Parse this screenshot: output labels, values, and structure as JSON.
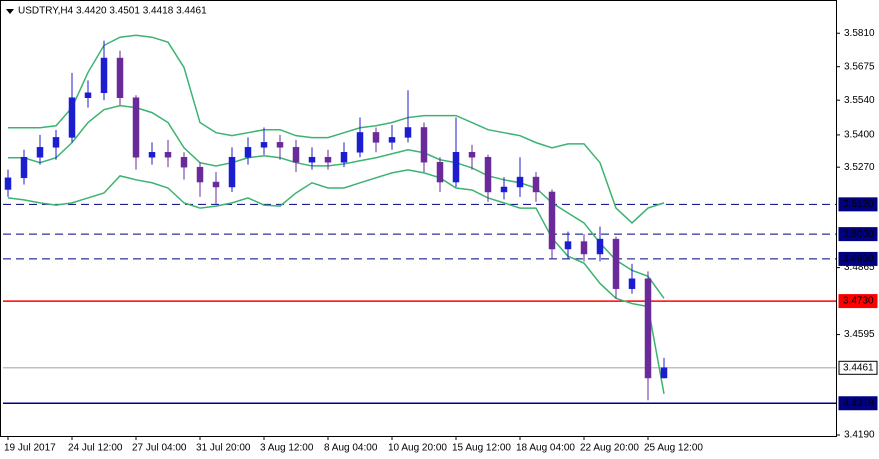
{
  "chart_data": {
    "type": "candlestick",
    "title": "USDTRY,H4  3.4420 3.4501 3.4418 3.4461",
    "categories": [
      "19 Jul 2017",
      null,
      null,
      null,
      "24 Jul 12:00",
      null,
      null,
      null,
      "27 Jul 04:00",
      null,
      null,
      null,
      "31 Jul 20:00",
      null,
      null,
      null,
      "3 Aug 12:00",
      null,
      null,
      null,
      "8 Aug 04:00",
      null,
      null,
      null,
      "10 Aug 20:00",
      null,
      null,
      null,
      "15 Aug 12:00",
      null,
      null,
      null,
      "18 Aug 04:00",
      null,
      null,
      null,
      "22 Aug 20:00",
      null,
      null,
      null,
      "25 Aug 12:00",
      null
    ],
    "open": [
      3.518,
      3.5227,
      3.531,
      3.535,
      3.539,
      3.555,
      3.557,
      3.571,
      3.555,
      3.531,
      3.533,
      3.531,
      3.527,
      3.521,
      3.519,
      3.531,
      3.535,
      3.537,
      3.535,
      3.529,
      3.531,
      3.529,
      3.533,
      3.541,
      3.537,
      3.539,
      3.543,
      3.529,
      3.521,
      3.533,
      3.531,
      3.517,
      3.519,
      3.523,
      3.517,
      3.494,
      3.497,
      3.492,
      3.498,
      3.478,
      3.482,
      3.442
    ],
    "high": [
      3.526,
      3.534,
      3.54,
      3.542,
      3.565,
      3.562,
      3.578,
      3.574,
      3.556,
      3.537,
      3.538,
      3.533,
      3.529,
      3.525,
      3.535,
      3.539,
      3.543,
      3.54,
      3.538,
      3.535,
      3.534,
      3.537,
      3.547,
      3.543,
      3.544,
      3.558,
      3.545,
      3.531,
      3.547,
      3.536,
      3.532,
      3.523,
      3.531,
      3.525,
      3.518,
      3.501,
      3.5,
      3.503,
      3.499,
      3.488,
      3.485,
      3.4501
    ],
    "low": [
      3.515,
      3.52,
      3.528,
      3.53,
      3.537,
      3.551,
      3.554,
      3.552,
      3.526,
      3.528,
      3.527,
      3.522,
      3.515,
      3.512,
      3.517,
      3.528,
      3.532,
      3.53,
      3.525,
      3.526,
      3.526,
      3.527,
      3.531,
      3.533,
      3.534,
      3.537,
      3.525,
      3.517,
      3.519,
      3.526,
      3.513,
      3.514,
      3.515,
      3.513,
      3.49,
      3.49,
      3.489,
      3.489,
      3.474,
      3.476,
      3.433,
      3.4418
    ],
    "close": [
      3.5227,
      3.531,
      3.535,
      3.539,
      3.555,
      3.557,
      3.571,
      3.555,
      3.531,
      3.533,
      3.531,
      3.527,
      3.521,
      3.519,
      3.531,
      3.535,
      3.537,
      3.535,
      3.529,
      3.531,
      3.529,
      3.533,
      3.541,
      3.537,
      3.539,
      3.543,
      3.529,
      3.521,
      3.533,
      3.531,
      3.517,
      3.519,
      3.523,
      3.517,
      3.494,
      3.497,
      3.492,
      3.498,
      3.478,
      3.482,
      3.442,
      3.4461
    ],
    "up_color": "#1c1cd0",
    "down_color": "#6a2a9a",
    "bands": {
      "color": "#3cb371",
      "upper": [
        3.5429,
        3.5429,
        3.5429,
        3.5437,
        3.551,
        3.5652,
        3.5761,
        3.5794,
        3.5802,
        3.5794,
        3.5774,
        3.5672,
        3.545,
        3.5409,
        3.5397,
        3.5409,
        3.5421,
        3.5421,
        3.5397,
        3.5389,
        3.5389,
        3.5409,
        3.5429,
        3.5437,
        3.545,
        3.547,
        3.5478,
        3.5478,
        3.5478,
        3.545,
        3.5421,
        3.5409,
        3.5397,
        3.5369,
        3.5348,
        3.5364,
        3.5364,
        3.5288,
        3.5105,
        3.5045,
        3.5105,
        3.5126
      ],
      "middle": [
        3.5308,
        3.5308,
        3.5288,
        3.5308,
        3.5369,
        3.545,
        3.5502,
        3.5518,
        3.551,
        3.549,
        3.545,
        3.5348,
        3.5288,
        3.5275,
        3.5288,
        3.5308,
        3.5316,
        3.5308,
        3.5288,
        3.5275,
        3.5275,
        3.5283,
        3.5296,
        3.5308,
        3.5324,
        3.534,
        3.5328,
        3.53,
        3.5288,
        3.5267,
        3.5235,
        3.5219,
        3.5207,
        3.5186,
        3.5126,
        3.5085,
        3.5045,
        3.4964,
        3.4895,
        3.4854,
        3.483,
        3.4741
      ],
      "lower": [
        3.5146,
        3.5138,
        3.5126,
        3.5117,
        3.5126,
        3.5146,
        3.5166,
        3.5235,
        3.5219,
        3.5207,
        3.5186,
        3.5126,
        3.5105,
        3.5113,
        3.5126,
        3.5146,
        3.5117,
        3.5113,
        3.5166,
        3.5207,
        3.5186,
        3.5186,
        3.5207,
        3.5227,
        3.5247,
        3.5259,
        3.5247,
        3.5227,
        3.5186,
        3.5178,
        3.5146,
        3.5126,
        3.5105,
        3.5105,
        3.4984,
        3.4911,
        3.4883,
        3.4801,
        3.4741,
        3.472,
        3.4708,
        3.4356
      ]
    },
    "ylim": [
      3.4186,
      3.594
    ],
    "yticks": [
      {
        "value": 3.581,
        "label": "3.5810"
      },
      {
        "value": 3.5675,
        "label": "3.5675"
      },
      {
        "value": 3.554,
        "label": "3.5540"
      },
      {
        "value": 3.54,
        "label": "3.5400"
      },
      {
        "value": 3.527,
        "label": "3.5270"
      },
      {
        "value": 3.4865,
        "label": "3.4865"
      },
      {
        "value": 3.4595,
        "label": "3.4595"
      },
      {
        "value": 3.419,
        "label": "3.4190"
      }
    ],
    "levels": [
      {
        "value": 3.512,
        "label": "3.5120",
        "style": "dashed",
        "color": "#000080",
        "text_color": "#ffffff"
      },
      {
        "value": 3.5,
        "label": "3.5000",
        "style": "dashed",
        "color": "#000080",
        "text_color": "#ffffff"
      },
      {
        "value": 3.49,
        "label": "3.4900",
        "style": "dashed",
        "color": "#000080",
        "text_color": "#ffffff"
      },
      {
        "value": 3.473,
        "label": "3.4730",
        "style": "solid",
        "color": "#ff0000",
        "text_color": "#ffffff"
      },
      {
        "value": 3.4461,
        "label": "3.4461",
        "style": "solid",
        "color": "#c0c0c0",
        "text_color": "#000000"
      },
      {
        "value": 3.4318,
        "label": "3.4318",
        "style": "solid",
        "color": "#000080",
        "text_color": "#ffffff"
      }
    ]
  }
}
